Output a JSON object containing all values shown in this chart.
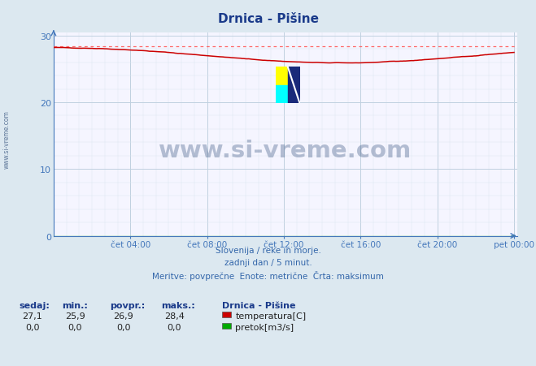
{
  "title": "Drnica - Pišine",
  "bg_color": "#dce8f0",
  "plot_bg_color": "#f5f5ff",
  "grid_color_major": "#c0d0e0",
  "grid_color_minor": "#dde8f0",
  "x_labels": [
    "čet 04:00",
    "čet 08:00",
    "čet 12:00",
    "čet 16:00",
    "čet 20:00",
    "pet 00:00"
  ],
  "x_ticks": [
    48,
    96,
    144,
    192,
    240,
    288
  ],
  "y_ticks": [
    0,
    10,
    20,
    30
  ],
  "ylim": [
    0,
    30.5
  ],
  "xlim": [
    0,
    290
  ],
  "temp_max": 28.4,
  "temp_min": 25.9,
  "temp_avg": 26.9,
  "temp_current": 27.1,
  "subtitle1": "Slovenija / reke in morje.",
  "subtitle2": "zadnji dan / 5 minut.",
  "subtitle3": "Meritve: povprečne  Enote: metrične  Črta: maksimum",
  "legend_title": "Drnica - Pišine",
  "temp_color": "#cc0000",
  "pretok_color": "#00aa00",
  "max_line_color": "#ff6666",
  "watermark_text": "www.si-vreme.com",
  "watermark_color": "#1a3a6a",
  "watermark_alpha": 0.3,
  "sidebar_text": "www.si-vreme.com",
  "title_color": "#1a3a8a",
  "axis_color": "#4477bb",
  "tick_color": "#4477bb",
  "label_color": "#3366aa",
  "stats_color": "#1a3a8a"
}
